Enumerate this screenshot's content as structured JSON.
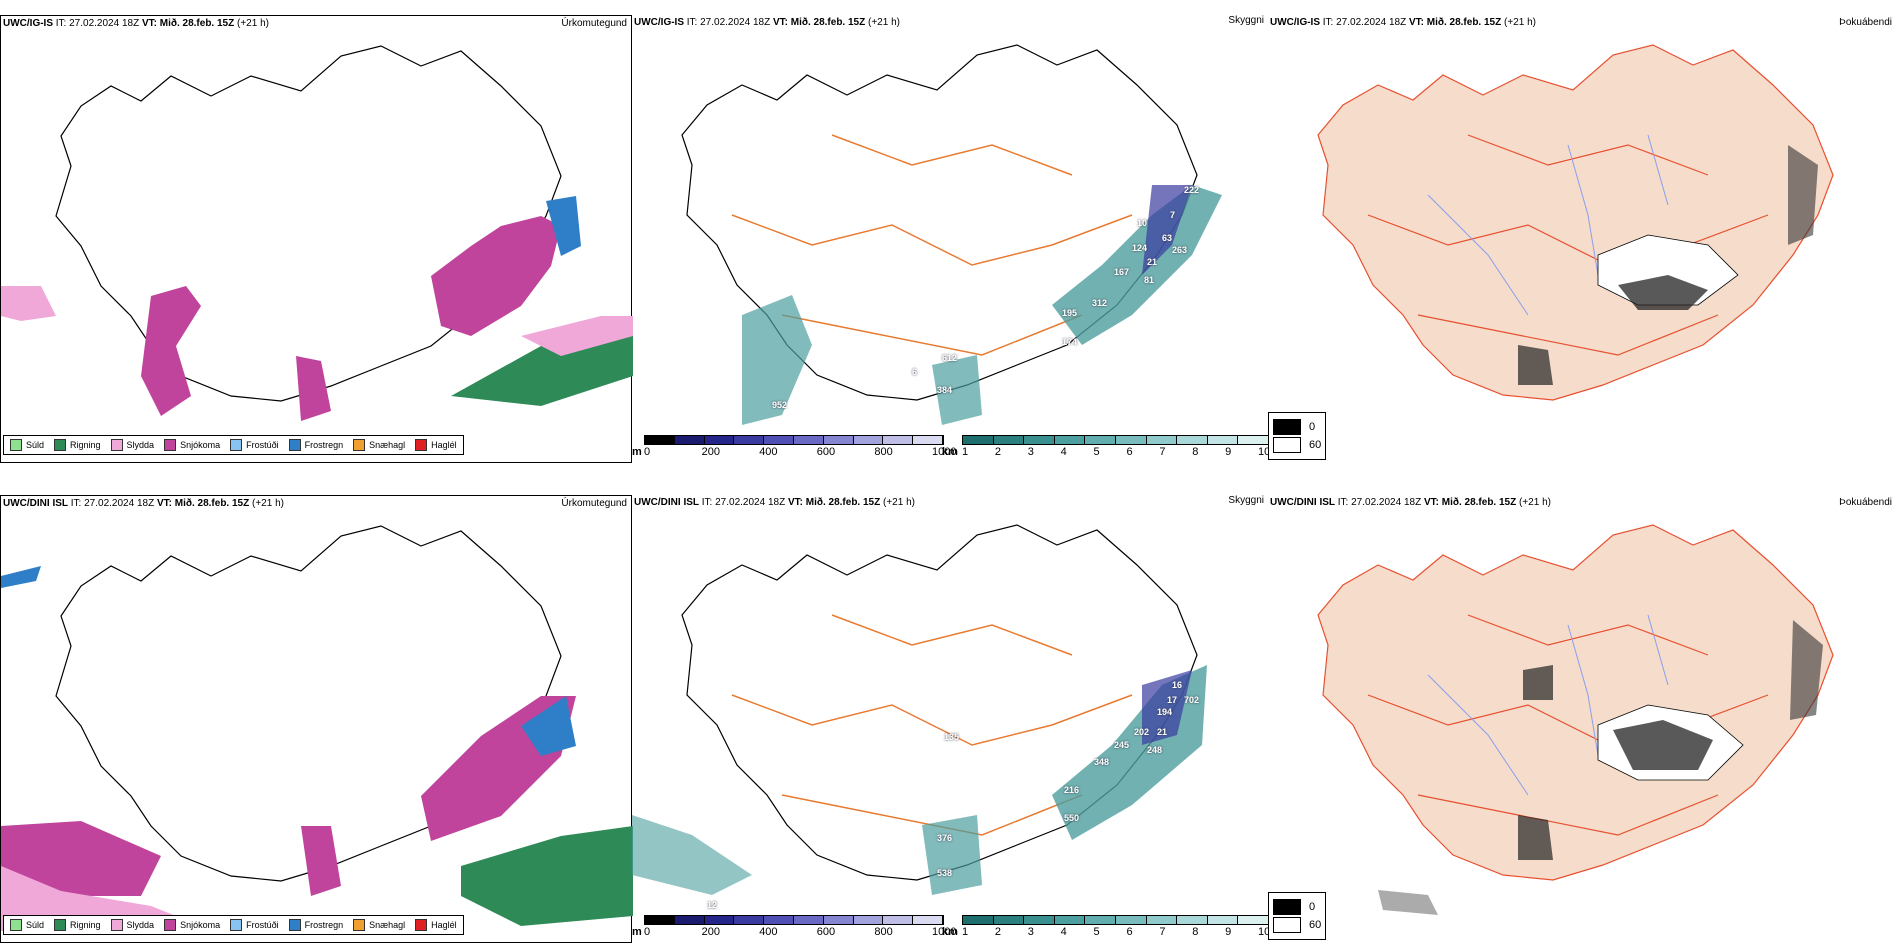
{
  "header": {
    "it_label": "IT:",
    "it_value": "27.02.2024 18Z",
    "vt_label": "VT:",
    "vt_value": "Mið. 28.feb. 15Z",
    "lead": "(+21 h)"
  },
  "rows": [
    {
      "model": "UWC/IG-IS",
      "precip_title": "Úrkomutegund",
      "vis_title": "Skyggni",
      "fog_title": "Þokuábendi",
      "vis_markers": [
        "222",
        "7",
        "10",
        "63",
        "124",
        "263",
        "21",
        "167",
        "81",
        "312",
        "195",
        "174",
        "612",
        "6",
        "384",
        "952"
      ]
    },
    {
      "model": "UWC/DINI ISL",
      "precip_title": "Úrkomutegund",
      "vis_title": "Skyggni",
      "fog_title": "Þokuábendi",
      "vis_markers": [
        "16",
        "17",
        "702",
        "202",
        "21",
        "245",
        "194",
        "248",
        "135",
        "348",
        "216",
        "550",
        "376",
        "538",
        "12"
      ]
    }
  ],
  "precip_legend": [
    {
      "label": "Súld",
      "color": "#8fe08f"
    },
    {
      "label": "Rigning",
      "color": "#2e8b57"
    },
    {
      "label": "Slydda",
      "color": "#f0a8d8"
    },
    {
      "label": "Snjókoma",
      "color": "#c0449c"
    },
    {
      "label": "Frostúði",
      "color": "#88c4f0"
    },
    {
      "label": "Frostregn",
      "color": "#2f7fc8"
    },
    {
      "label": "Snæhagl",
      "color": "#f0a030"
    },
    {
      "label": "Haglél",
      "color": "#e02020"
    }
  ],
  "vis_colorbar_m": {
    "unit": "m",
    "ticks": [
      "0",
      "200",
      "400",
      "600",
      "800",
      "1000"
    ],
    "colors": [
      "#000000",
      "#1a1a6e",
      "#26268a",
      "#3a3aa0",
      "#5050b4",
      "#6a6ac4",
      "#8686d0",
      "#a2a2dc",
      "#bebee6",
      "#dadaf0"
    ]
  },
  "vis_colorbar_km": {
    "unit": "km",
    "ticks": [
      "1",
      "2",
      "3",
      "4",
      "5",
      "6",
      "7",
      "8",
      "9",
      "10"
    ],
    "colors": [
      "#1e6e6e",
      "#2a7f7f",
      "#3a8f8f",
      "#4d9e9e",
      "#62aeae",
      "#78bcbc",
      "#90caca",
      "#a8d8d8",
      "#c2e4e4",
      "#ddf0f0"
    ]
  },
  "fog_legend": [
    {
      "label": "0",
      "color": "#000000"
    },
    {
      "label": "60",
      "color": "#ffffff"
    }
  ],
  "colors": {
    "land_fog": "#f5dccb",
    "road": "#e87a30",
    "river": "#8a9ff0",
    "coast": "#000000"
  }
}
